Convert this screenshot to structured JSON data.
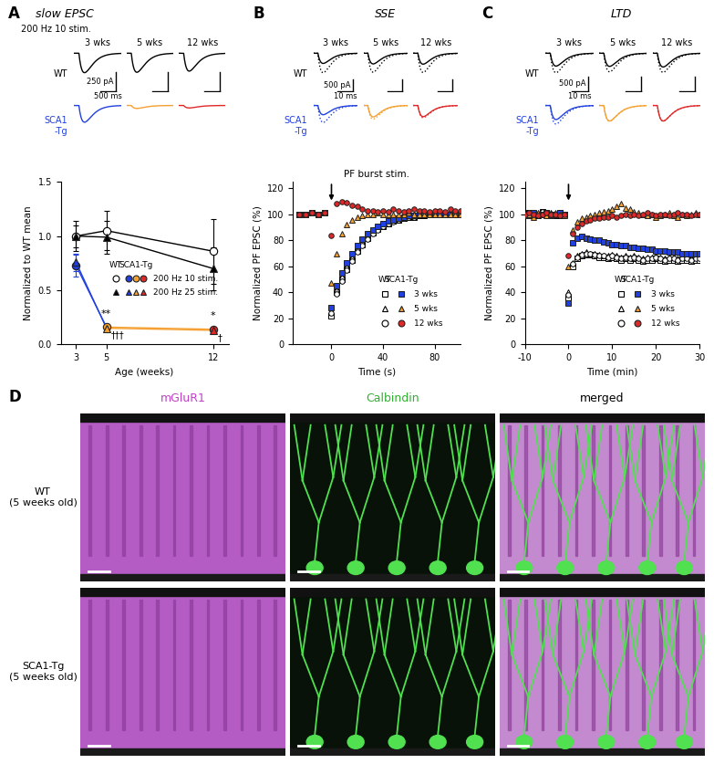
{
  "chart_data": [
    {
      "type": "line",
      "label": "A",
      "title": "slow EPSC",
      "traces": {
        "stimulus": "200 Hz 10 stim.",
        "columns": [
          "3 wks",
          "5 wks",
          "12 wks"
        ],
        "rows": [
          {
            "label": "WT",
            "color": "#000000",
            "amplitudes": [
              -250,
              -245,
              -230
            ]
          },
          {
            "label": "SCA1\n-Tg",
            "colors": [
              "#2040e0",
              "#f5a030",
              "#e02828"
            ],
            "amplitudes": [
              -215,
              -38,
              -32
            ]
          }
        ],
        "scale_bar": {
          "x": 500,
          "x_label": "500 ms",
          "y": 250,
          "y_label": "250 pA"
        }
      },
      "x_label": "Age (weeks)",
      "y_label": "Normalized to WT mean",
      "x": [
        3,
        5,
        12
      ],
      "xlim": [
        2,
        13
      ],
      "xticks": [
        3,
        5,
        12
      ],
      "ylim": [
        0,
        1.5
      ],
      "yticks": [
        {
          "value": 0,
          "label": "0.0"
        },
        {
          "value": 0.5,
          "label": "0.5"
        },
        {
          "value": 1,
          "label": "1.0"
        },
        {
          "value": 1.5,
          "label": "1.5"
        }
      ],
      "groups": [
        "WT",
        "SCA1-Tg"
      ],
      "series": [
        {
          "name": "200 Hz 10 stim.",
          "group": "WT",
          "color": "#000000",
          "marker": "open_circle",
          "values": [
            1.0,
            1.05,
            0.86
          ],
          "errors": [
            0.14,
            0.18,
            0.3
          ]
        },
        {
          "name": "200 Hz 25 stim.",
          "group": "WT",
          "color": "#000000",
          "marker": "triangle",
          "values": [
            1.0,
            0.99,
            0.7
          ],
          "errors": [
            0.1,
            0.15,
            0.2
          ]
        },
        {
          "name": "200 Hz 10 stim.",
          "group": "SCA1-Tg",
          "colors": [
            "#2040e0",
            "#f5a030",
            "#e02828"
          ],
          "marker": "circle",
          "values": [
            0.73,
            0.16,
            0.14
          ],
          "errors": [
            0.1,
            0.02,
            0.02
          ]
        },
        {
          "name": "200 Hz 25 stim.",
          "group": "SCA1-Tg",
          "colors": [
            "#2040e0",
            "#f5a030",
            "#e02828"
          ],
          "marker": "triangle",
          "values": [
            0.76,
            0.15,
            0.13
          ],
          "errors": [
            0.08,
            0.02,
            0.02
          ]
        }
      ],
      "annotations": [
        {
          "text": "**",
          "x": 5,
          "side": "above"
        },
        {
          "text": "†††",
          "x": 5,
          "side": "below"
        },
        {
          "text": "*",
          "x": 12,
          "side": "above"
        },
        {
          "text": "†",
          "x": 12,
          "side": "below"
        }
      ]
    },
    {
      "type": "scatter",
      "label": "B",
      "title": "SSE",
      "traces": {
        "columns": [
          "3 wks",
          "5 wks",
          "12 wks"
        ],
        "rows": [
          {
            "label": "WT",
            "color": "#000000",
            "before": [
              -800,
              -780,
              -790
            ],
            "after": [
              -420,
              -440,
              -450
            ]
          },
          {
            "label": "SCA1\n-Tg",
            "colors": [
              "#2040e0",
              "#f5a030",
              "#e02828"
            ],
            "before": [
              -700,
              -560,
              -500
            ],
            "after": [
              -380,
              -470,
              -460
            ]
          }
        ],
        "scale_bar": {
          "x": 10,
          "x_label": "10 ms",
          "y": 500,
          "y_label": "500 pA"
        }
      },
      "stimulus": {
        "label": "PF burst stim.",
        "x": 0
      },
      "x_label": "Time (s)",
      "y_label": "Normalized PF EPSC (%)",
      "xlim": [
        -30,
        100
      ],
      "xticks": [
        0,
        40,
        80
      ],
      "ylim": [
        0,
        125
      ],
      "yticks": [
        0,
        20,
        40,
        60,
        80,
        100,
        120
      ],
      "legend": "lower right",
      "groups": [
        "WT",
        "SCA1-Tg"
      ],
      "x": [
        -25,
        -20,
        -15,
        -10,
        -5,
        0,
        4,
        8,
        12,
        16,
        20,
        24,
        28,
        32,
        36,
        40,
        44,
        48,
        52,
        56,
        60,
        64,
        68,
        72,
        76,
        80,
        84,
        88,
        92,
        96,
        100
      ],
      "series": [
        {
          "name": "3 wks",
          "group": "WT",
          "color": "#000000",
          "marker": "open_square",
          "values": [
            100,
            100,
            101,
            100,
            101,
            22,
            40,
            50,
            58,
            65,
            72,
            77,
            82,
            86,
            89,
            91,
            93,
            95,
            96,
            97,
            98,
            98,
            99,
            99,
            100,
            100,
            100,
            100,
            100,
            100,
            100
          ]
        },
        {
          "name": "5 wks",
          "group": "WT",
          "color": "#000000",
          "marker": "open_triangle",
          "values": [
            100,
            100,
            101,
            100,
            101,
            25,
            42,
            52,
            60,
            67,
            74,
            79,
            84,
            87,
            90,
            92,
            94,
            95,
            96,
            97,
            98,
            99,
            99,
            100,
            100,
            100,
            100,
            100,
            100,
            100,
            100
          ]
        },
        {
          "name": "12 wks",
          "group": "WT",
          "color": "#000000",
          "marker": "open_circle",
          "values": [
            100,
            100,
            101,
            100,
            101,
            24,
            39,
            49,
            57,
            64,
            71,
            76,
            81,
            85,
            88,
            91,
            93,
            94,
            96,
            97,
            98,
            98,
            99,
            100,
            100,
            100,
            100,
            100,
            100,
            100,
            100
          ]
        },
        {
          "name": "3 wks",
          "group": "SCA1-Tg",
          "color": "#2040e0",
          "marker": "square",
          "values": [
            100,
            100,
            101,
            100,
            101,
            28,
            45,
            55,
            63,
            70,
            76,
            81,
            85,
            88,
            91,
            93,
            95,
            96,
            97,
            98,
            99,
            99,
            100,
            100,
            100,
            100,
            100,
            100,
            100,
            100,
            100
          ]
        },
        {
          "name": "5 wks",
          "group": "SCA1-Tg",
          "color": "#f5a030",
          "marker": "triangle",
          "values": [
            100,
            100,
            101,
            100,
            101,
            47,
            70,
            85,
            92,
            96,
            98,
            99,
            100,
            100,
            101,
            100,
            100,
            100,
            100,
            100,
            101,
            100,
            100,
            100,
            100,
            100,
            100,
            100,
            100,
            100,
            100
          ]
        },
        {
          "name": "12 wks",
          "group": "SCA1-Tg",
          "color": "#e02828",
          "marker": "circle",
          "values": [
            100,
            100,
            101,
            100,
            101,
            84,
            108,
            110,
            109,
            107,
            106,
            104,
            103,
            103,
            102,
            103,
            102,
            104,
            103,
            102,
            103,
            104,
            103,
            103,
            102,
            103,
            103,
            102,
            104,
            103,
            103
          ]
        }
      ]
    },
    {
      "type": "scatter",
      "label": "C",
      "title": "LTD",
      "traces": {
        "columns": [
          "3 wks",
          "5 wks",
          "12 wks"
        ],
        "rows": [
          {
            "label": "WT",
            "color": "#000000",
            "before": [
              -650,
              -620,
              -640
            ],
            "after": [
              -430,
              -440,
              -460
            ]
          },
          {
            "label": "SCA1\n-Tg",
            "colors": [
              "#2040e0",
              "#f5a030",
              "#e02828"
            ],
            "before": [
              -620,
              -520,
              -520
            ],
            "after": [
              -470,
              -520,
              -520
            ]
          }
        ],
        "scale_bar": {
          "x": 10,
          "x_label": "10 ms",
          "y": 500,
          "y_label": "500 pA"
        }
      },
      "stimulus": {
        "x": 0
      },
      "x_label": "Time (min)",
      "y_label": "Normalized PF EPSC (%)",
      "xlim": [
        -10,
        30
      ],
      "xticks": [
        -10,
        0,
        10,
        20,
        30
      ],
      "ylim": [
        0,
        125
      ],
      "yticks": [
        0,
        20,
        40,
        60,
        80,
        100,
        120
      ],
      "legend": "lower right",
      "groups": [
        "WT",
        "SCA1-Tg"
      ],
      "x": [
        -10,
        -9,
        -8,
        -7,
        -6,
        -5,
        -4,
        -3,
        -2,
        -1,
        0,
        1,
        2,
        3,
        4,
        5,
        6,
        7,
        8,
        9,
        10,
        11,
        12,
        13,
        14,
        15,
        16,
        17,
        18,
        19,
        20,
        21,
        22,
        23,
        24,
        25,
        26,
        27,
        28,
        29,
        30
      ],
      "series": [
        {
          "name": "3 wks",
          "group": "WT",
          "color": "#000000",
          "marker": "open_square",
          "values": [
            100,
            101,
            99,
            100,
            102,
            101,
            100,
            99,
            101,
            100,
            36,
            60,
            66,
            68,
            69,
            69,
            68,
            67,
            67,
            66,
            67,
            66,
            65,
            66,
            65,
            66,
            65,
            64,
            65,
            65,
            66,
            65,
            64,
            65,
            65,
            64,
            65,
            65,
            64,
            65,
            65
          ]
        },
        {
          "name": "5 wks",
          "group": "WT",
          "color": "#000000",
          "marker": "open_triangle",
          "values": [
            101,
            100,
            100,
            99,
            101,
            100,
            101,
            100,
            99,
            100,
            40,
            63,
            68,
            70,
            71,
            70,
            70,
            69,
            68,
            68,
            69,
            68,
            67,
            68,
            67,
            68,
            67,
            66,
            67,
            67,
            68,
            67,
            66,
            67,
            67,
            66,
            67,
            67,
            66,
            67,
            67
          ]
        },
        {
          "name": "12 wks",
          "group": "WT",
          "color": "#000000",
          "marker": "open_circle",
          "values": [
            100,
            101,
            99,
            100,
            102,
            101,
            100,
            99,
            101,
            100,
            38,
            62,
            67,
            69,
            70,
            70,
            69,
            68,
            68,
            67,
            68,
            67,
            66,
            67,
            66,
            67,
            66,
            65,
            66,
            66,
            67,
            66,
            65,
            66,
            66,
            65,
            66,
            66,
            65,
            66,
            66
          ]
        },
        {
          "name": "3 wks",
          "group": "SCA1-Tg",
          "color": "#2040e0",
          "marker": "square",
          "values": [
            100,
            99,
            101,
            100,
            100,
            101,
            99,
            100,
            101,
            100,
            32,
            78,
            82,
            83,
            82,
            81,
            80,
            80,
            79,
            78,
            77,
            77,
            76,
            76,
            75,
            75,
            74,
            74,
            73,
            73,
            72,
            72,
            72,
            71,
            71,
            71,
            70,
            70,
            70,
            70,
            70
          ]
        },
        {
          "name": "5 wks",
          "group": "SCA1-Tg",
          "color": "#f5a030",
          "marker": "triangle",
          "values": [
            99,
            100,
            98,
            101,
            100,
            99,
            100,
            101,
            100,
            99,
            60,
            88,
            94,
            97,
            98,
            99,
            100,
            101,
            102,
            103,
            104,
            106,
            108,
            105,
            104,
            102,
            101,
            100,
            99,
            100,
            98,
            99,
            100,
            101,
            99,
            98,
            100,
            99,
            100,
            101,
            100
          ]
        },
        {
          "name": "12 wks",
          "group": "SCA1-Tg",
          "color": "#e02828",
          "marker": "circle",
          "values": [
            100,
            101,
            100,
            99,
            100,
            101,
            100,
            100,
            99,
            100,
            68,
            85,
            90,
            93,
            95,
            96,
            97,
            97,
            98,
            98,
            99,
            98,
            99,
            100,
            99,
            100,
            99,
            100,
            101,
            100,
            99,
            100,
            100,
            99,
            100,
            101,
            100,
            100,
            99,
            100,
            100
          ]
        }
      ]
    }
  ],
  "panel_D": {
    "label": "D",
    "columns": [
      {
        "title": "mGluR1",
        "color": "#c040c8"
      },
      {
        "title": "Calbindin",
        "color": "#30b030"
      },
      {
        "title": "merged",
        "color": "#000000"
      }
    ],
    "rows": [
      "WT\n(5 weeks old)",
      "SCA1-Tg\n(5 weeks old)"
    ]
  }
}
